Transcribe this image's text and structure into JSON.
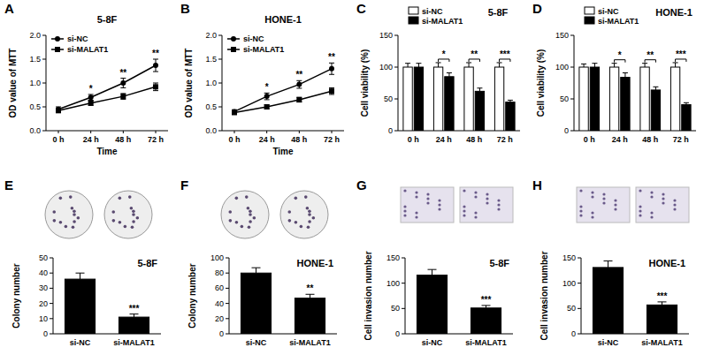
{
  "chart_data": [
    {
      "panel": "A",
      "type": "line",
      "title": "5-8F",
      "x_label": "Time",
      "y_label": "OD value of MTT",
      "categories": [
        "0 h",
        "24 h",
        "48 h",
        "72 h"
      ],
      "series": [
        {
          "name": "si-NC",
          "color": "#000000",
          "marker": "circle",
          "values": [
            0.45,
            0.7,
            1.0,
            1.37
          ],
          "errors": [
            0.05,
            0.06,
            0.1,
            0.13
          ]
        },
        {
          "name": "si-MALAT1",
          "color": "#000000",
          "marker": "square",
          "values": [
            0.42,
            0.58,
            0.72,
            0.92
          ],
          "errors": [
            0.04,
            0.05,
            0.06,
            0.08
          ]
        }
      ],
      "ylim": [
        0,
        2
      ],
      "yticks": [
        {
          "value": 0,
          "label": "0.0"
        },
        {
          "value": 0.5,
          "label": "0.5"
        },
        {
          "value": 1,
          "label": "1.0"
        },
        {
          "value": 1.5,
          "label": "1.5"
        },
        {
          "value": 2,
          "label": "2.0"
        }
      ],
      "legend": "upper left",
      "annotations": [
        {
          "category": "24 h",
          "text": "*"
        },
        {
          "category": "48 h",
          "text": "**"
        },
        {
          "category": "72 h",
          "text": "**"
        }
      ]
    },
    {
      "panel": "B",
      "type": "line",
      "title": "HONE-1",
      "x_label": "Time",
      "y_label": "OD value of MTT",
      "categories": [
        "0 h",
        "24 h",
        "48 h",
        "72 h"
      ],
      "series": [
        {
          "name": "si-NC",
          "color": "#000000",
          "marker": "circle",
          "values": [
            0.4,
            0.72,
            0.97,
            1.3
          ],
          "errors": [
            0.04,
            0.07,
            0.08,
            0.12
          ]
        },
        {
          "name": "si-MALAT1",
          "color": "#000000",
          "marker": "square",
          "values": [
            0.38,
            0.5,
            0.65,
            0.83
          ],
          "errors": [
            0.03,
            0.04,
            0.05,
            0.07
          ]
        }
      ],
      "ylim": [
        0,
        2
      ],
      "yticks": [
        {
          "value": 0,
          "label": "0.0"
        },
        {
          "value": 0.5,
          "label": "0.5"
        },
        {
          "value": 1,
          "label": "1.0"
        },
        {
          "value": 1.5,
          "label": "1.5"
        },
        {
          "value": 2,
          "label": "2.0"
        }
      ],
      "legend": "upper left",
      "annotations": [
        {
          "category": "24 h",
          "text": "*"
        },
        {
          "category": "48 h",
          "text": "**"
        },
        {
          "category": "72 h",
          "text": "**"
        }
      ]
    },
    {
      "panel": "C",
      "type": "bar",
      "title": "5-8F",
      "y_label": "Cell viability (%)",
      "categories": [
        "0 h",
        "24 h",
        "48 h",
        "72 h"
      ],
      "series": [
        {
          "name": "si-NC",
          "color": "#ffffff",
          "values": [
            100,
            100,
            100,
            100
          ],
          "errors": [
            6,
            7,
            7,
            7
          ]
        },
        {
          "name": "si-MALAT1",
          "color": "#000000",
          "values": [
            100,
            85,
            62,
            45
          ],
          "errors": [
            6,
            6,
            5,
            3
          ]
        }
      ],
      "ylim": [
        0,
        150
      ],
      "yticks": [
        0,
        50,
        100,
        150
      ],
      "legend": "upper left",
      "annotations": [
        {
          "category": "24 h",
          "text": "*"
        },
        {
          "category": "48 h",
          "text": "**"
        },
        {
          "category": "72 h",
          "text": "***"
        }
      ]
    },
    {
      "panel": "D",
      "type": "bar",
      "title": "HONE-1",
      "y_label": "Cell viability (%)",
      "categories": [
        "0 h",
        "24 h",
        "48 h",
        "72 h"
      ],
      "series": [
        {
          "name": "si-NC",
          "color": "#ffffff",
          "values": [
            100,
            100,
            100,
            100
          ],
          "errors": [
            5,
            6,
            6,
            7
          ]
        },
        {
          "name": "si-MALAT1",
          "color": "#000000",
          "values": [
            100,
            84,
            64,
            41
          ],
          "errors": [
            6,
            7,
            5,
            3
          ]
        }
      ],
      "ylim": [
        0,
        150
      ],
      "yticks": [
        0,
        50,
        100,
        150
      ],
      "legend": "upper left",
      "annotations": [
        {
          "category": "24 h",
          "text": "*"
        },
        {
          "category": "48 h",
          "text": "**"
        },
        {
          "category": "72 h",
          "text": "***"
        }
      ]
    },
    {
      "panel": "E",
      "type": "bar",
      "title": "5-8F",
      "y_label": "Colony number",
      "categories": [
        "si-NC",
        "si-MALAT1"
      ],
      "values": [
        36,
        11
      ],
      "errors": [
        4,
        2
      ],
      "color": "#000000",
      "ylim": [
        0,
        50
      ],
      "yticks": [
        0,
        10,
        20,
        30,
        40,
        50
      ],
      "annotations": [
        {
          "category": "si-MALAT1",
          "text": "***"
        }
      ]
    },
    {
      "panel": "F",
      "type": "bar",
      "title": "HONE-1",
      "y_label": "Colony number",
      "categories": [
        "si-NC",
        "si-MALAT1"
      ],
      "values": [
        80,
        47
      ],
      "errors": [
        7,
        5
      ],
      "color": "#000000",
      "ylim": [
        0,
        100
      ],
      "yticks": [
        0,
        20,
        40,
        60,
        80,
        100
      ],
      "annotations": [
        {
          "category": "si-MALAT1",
          "text": "**"
        }
      ]
    },
    {
      "panel": "G",
      "type": "bar",
      "title": "5-8F",
      "y_label": "Cell invasion number",
      "categories": [
        "si-NC",
        "si-MALAT1"
      ],
      "values": [
        116,
        51
      ],
      "errors": [
        11,
        5
      ],
      "color": "#000000",
      "ylim": [
        0,
        150
      ],
      "yticks": [
        0,
        50,
        100,
        150
      ],
      "annotations": [
        {
          "category": "si-MALAT1",
          "text": "***"
        }
      ]
    },
    {
      "panel": "H",
      "type": "bar",
      "title": "HONE-1",
      "y_label": "Cell invasion number",
      "categories": [
        "si-NC",
        "si-MALAT1"
      ],
      "values": [
        131,
        57
      ],
      "errors": [
        13,
        6
      ],
      "color": "#000000",
      "ylim": [
        0,
        150
      ],
      "yticks": [
        0,
        50,
        100,
        150
      ],
      "annotations": [
        {
          "category": "si-MALAT1",
          "text": "***"
        }
      ]
    }
  ]
}
